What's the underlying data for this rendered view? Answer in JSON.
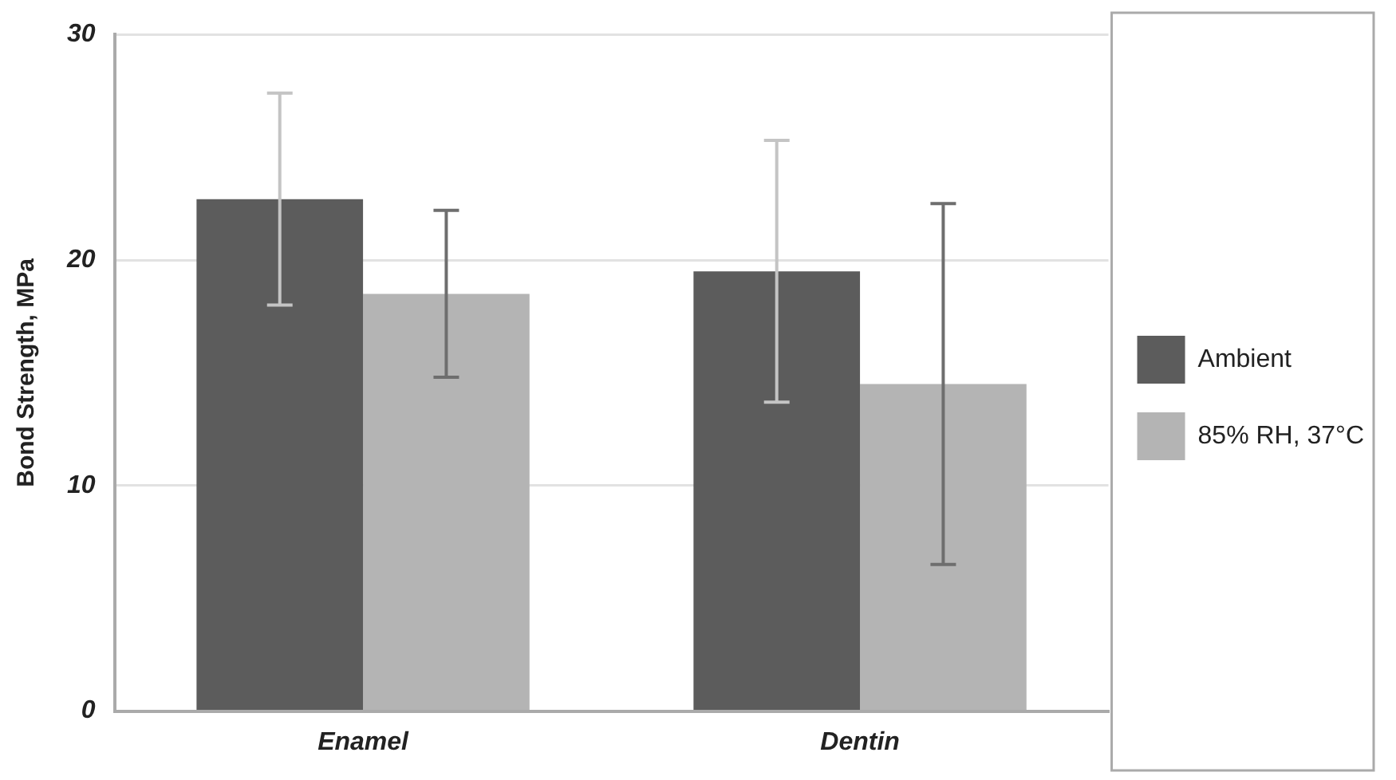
{
  "chart_data": {
    "type": "bar",
    "ylabel": "Bond Strength, MPa",
    "categories": [
      "Enamel",
      "Dentin"
    ],
    "series": [
      {
        "name": "Ambient",
        "color": "#5c5c5c",
        "values": [
          22.7,
          19.5
        ],
        "errors": [
          4.7,
          5.8
        ]
      },
      {
        "name": "85% RH, 37°C",
        "color": "#b4b4b4",
        "values": [
          18.5,
          14.5
        ],
        "errors": [
          3.7,
          8.0
        ]
      }
    ],
    "ylim": [
      0,
      30
    ],
    "yticks": [
      0,
      10,
      20,
      30
    ],
    "grid": "y",
    "legend": "right"
  }
}
